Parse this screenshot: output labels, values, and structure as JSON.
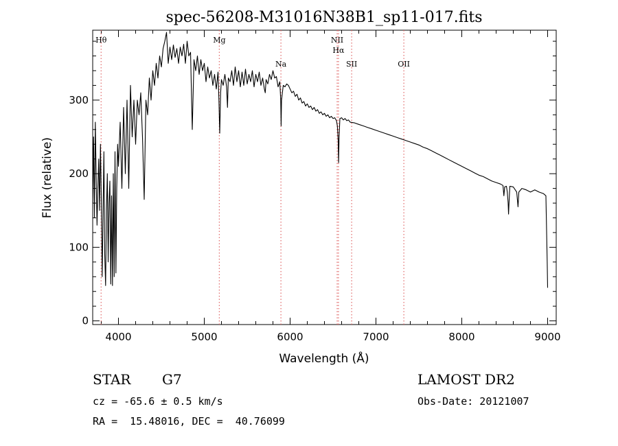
{
  "chart_data": {
    "type": "line",
    "title": "spec-56208-M31016N38B1_sp11-017.fits",
    "xlabel": "Wavelength (Å)",
    "ylabel": "Flux (relative)",
    "xlim": [
      3700,
      9100
    ],
    "ylim": [
      -5,
      395
    ],
    "xticks": [
      4000,
      5000,
      6000,
      7000,
      8000,
      9000
    ],
    "yticks": [
      0,
      100,
      200,
      300
    ],
    "x_minor_step": 200,
    "y_minor_step": 20,
    "grid": false,
    "line_color": "#000000",
    "marker_color": "#e06666",
    "spectrum": [
      [
        3700,
        160
      ],
      [
        3710,
        250
      ],
      [
        3720,
        140
      ],
      [
        3730,
        270
      ],
      [
        3740,
        200
      ],
      [
        3750,
        130
      ],
      [
        3760,
        180
      ],
      [
        3770,
        220
      ],
      [
        3780,
        150
      ],
      [
        3790,
        240
      ],
      [
        3800,
        170
      ],
      [
        3810,
        60
      ],
      [
        3820,
        140
      ],
      [
        3830,
        230
      ],
      [
        3840,
        90
      ],
      [
        3850,
        48
      ],
      [
        3860,
        150
      ],
      [
        3870,
        200
      ],
      [
        3880,
        80
      ],
      [
        3890,
        160
      ],
      [
        3900,
        190
      ],
      [
        3910,
        50
      ],
      [
        3920,
        170
      ],
      [
        3930,
        48
      ],
      [
        3940,
        200
      ],
      [
        3950,
        60
      ],
      [
        3960,
        230
      ],
      [
        3970,
        65
      ],
      [
        3980,
        180
      ],
      [
        3990,
        240
      ],
      [
        4000,
        210
      ],
      [
        4020,
        270
      ],
      [
        4040,
        180
      ],
      [
        4060,
        290
      ],
      [
        4080,
        200
      ],
      [
        4100,
        300
      ],
      [
        4120,
        180
      ],
      [
        4140,
        320
      ],
      [
        4160,
        250
      ],
      [
        4180,
        300
      ],
      [
        4200,
        240
      ],
      [
        4220,
        300
      ],
      [
        4240,
        280
      ],
      [
        4260,
        310
      ],
      [
        4280,
        250
      ],
      [
        4300,
        165
      ],
      [
        4320,
        300
      ],
      [
        4340,
        280
      ],
      [
        4360,
        330
      ],
      [
        4380,
        300
      ],
      [
        4400,
        340
      ],
      [
        4420,
        320
      ],
      [
        4440,
        350
      ],
      [
        4460,
        330
      ],
      [
        4480,
        360
      ],
      [
        4500,
        345
      ],
      [
        4520,
        370
      ],
      [
        4540,
        380
      ],
      [
        4560,
        392
      ],
      [
        4580,
        350
      ],
      [
        4600,
        372
      ],
      [
        4620,
        355
      ],
      [
        4640,
        375
      ],
      [
        4660,
        358
      ],
      [
        4680,
        370
      ],
      [
        4700,
        350
      ],
      [
        4720,
        372
      ],
      [
        4740,
        360
      ],
      [
        4760,
        376
      ],
      [
        4780,
        350
      ],
      [
        4800,
        380
      ],
      [
        4820,
        360
      ],
      [
        4840,
        365
      ],
      [
        4860,
        260
      ],
      [
        4880,
        355
      ],
      [
        4900,
        340
      ],
      [
        4920,
        360
      ],
      [
        4940,
        335
      ],
      [
        4960,
        355
      ],
      [
        4980,
        340
      ],
      [
        5000,
        350
      ],
      [
        5020,
        325
      ],
      [
        5040,
        345
      ],
      [
        5060,
        330
      ],
      [
        5080,
        340
      ],
      [
        5100,
        320
      ],
      [
        5120,
        335
      ],
      [
        5140,
        315
      ],
      [
        5160,
        338
      ],
      [
        5170,
        300
      ],
      [
        5180,
        255
      ],
      [
        5190,
        310
      ],
      [
        5200,
        328
      ],
      [
        5220,
        320
      ],
      [
        5240,
        335
      ],
      [
        5260,
        318
      ],
      [
        5270,
        290
      ],
      [
        5280,
        330
      ],
      [
        5300,
        325
      ],
      [
        5320,
        340
      ],
      [
        5340,
        320
      ],
      [
        5360,
        345
      ],
      [
        5380,
        325
      ],
      [
        5400,
        340
      ],
      [
        5420,
        318
      ],
      [
        5440,
        338
      ],
      [
        5460,
        320
      ],
      [
        5480,
        342
      ],
      [
        5500,
        322
      ],
      [
        5520,
        335
      ],
      [
        5540,
        325
      ],
      [
        5560,
        340
      ],
      [
        5580,
        318
      ],
      [
        5600,
        335
      ],
      [
        5620,
        325
      ],
      [
        5640,
        338
      ],
      [
        5660,
        320
      ],
      [
        5680,
        330
      ],
      [
        5700,
        315
      ],
      [
        5710,
        310
      ],
      [
        5720,
        328
      ],
      [
        5740,
        322
      ],
      [
        5760,
        335
      ],
      [
        5780,
        328
      ],
      [
        5800,
        340
      ],
      [
        5820,
        330
      ],
      [
        5840,
        332
      ],
      [
        5860,
        318
      ],
      [
        5880,
        325
      ],
      [
        5890,
        300
      ],
      [
        5895,
        265
      ],
      [
        5900,
        300
      ],
      [
        5920,
        320
      ],
      [
        5940,
        318
      ],
      [
        5960,
        322
      ],
      [
        5980,
        320
      ],
      [
        6000,
        315
      ],
      [
        6020,
        310
      ],
      [
        6040,
        312
      ],
      [
        6060,
        305
      ],
      [
        6080,
        308
      ],
      [
        6100,
        300
      ],
      [
        6120,
        303
      ],
      [
        6140,
        296
      ],
      [
        6160,
        298
      ],
      [
        6180,
        292
      ],
      [
        6200,
        295
      ],
      [
        6220,
        290
      ],
      [
        6240,
        292
      ],
      [
        6260,
        287
      ],
      [
        6280,
        290
      ],
      [
        6300,
        285
      ],
      [
        6320,
        287
      ],
      [
        6340,
        282
      ],
      [
        6360,
        284
      ],
      [
        6380,
        280
      ],
      [
        6400,
        282
      ],
      [
        6420,
        278
      ],
      [
        6440,
        280
      ],
      [
        6460,
        276
      ],
      [
        6480,
        278
      ],
      [
        6500,
        275
      ],
      [
        6520,
        276
      ],
      [
        6540,
        272
      ],
      [
        6550,
        265
      ],
      [
        6560,
        245
      ],
      [
        6565,
        215
      ],
      [
        6570,
        250
      ],
      [
        6580,
        275
      ],
      [
        6600,
        276
      ],
      [
        6620,
        273
      ],
      [
        6640,
        275
      ],
      [
        6660,
        272
      ],
      [
        6680,
        273
      ],
      [
        6700,
        270
      ],
      [
        6750,
        269
      ],
      [
        6800,
        267
      ],
      [
        6850,
        265
      ],
      [
        6900,
        263
      ],
      [
        6950,
        261
      ],
      [
        7000,
        259
      ],
      [
        7050,
        257
      ],
      [
        7100,
        255
      ],
      [
        7150,
        253
      ],
      [
        7200,
        251
      ],
      [
        7250,
        249
      ],
      [
        7300,
        247
      ],
      [
        7350,
        245
      ],
      [
        7400,
        243
      ],
      [
        7450,
        241
      ],
      [
        7500,
        239
      ],
      [
        7550,
        236
      ],
      [
        7600,
        234
      ],
      [
        7650,
        231
      ],
      [
        7700,
        228
      ],
      [
        7750,
        225
      ],
      [
        7800,
        222
      ],
      [
        7850,
        219
      ],
      [
        7900,
        216
      ],
      [
        7950,
        213
      ],
      [
        8000,
        210
      ],
      [
        8050,
        207
      ],
      [
        8100,
        204
      ],
      [
        8150,
        201
      ],
      [
        8200,
        198
      ],
      [
        8250,
        196
      ],
      [
        8300,
        193
      ],
      [
        8350,
        190
      ],
      [
        8400,
        188
      ],
      [
        8450,
        186
      ],
      [
        8480,
        184
      ],
      [
        8490,
        170
      ],
      [
        8500,
        182
      ],
      [
        8520,
        183
      ],
      [
        8530,
        175
      ],
      [
        8540,
        160
      ],
      [
        8545,
        145
      ],
      [
        8550,
        160
      ],
      [
        8560,
        183
      ],
      [
        8600,
        182
      ],
      [
        8640,
        175
      ],
      [
        8655,
        155
      ],
      [
        8665,
        175
      ],
      [
        8700,
        180
      ],
      [
        8750,
        178
      ],
      [
        8800,
        175
      ],
      [
        8850,
        178
      ],
      [
        8900,
        175
      ],
      [
        8950,
        173
      ],
      [
        8980,
        170
      ],
      [
        8995,
        80
      ],
      [
        9000,
        45
      ]
    ],
    "line_markers": [
      {
        "label": "Hθ",
        "x": 3798,
        "row": 0
      },
      {
        "label": "Mg",
        "x": 5175,
        "row": 0
      },
      {
        "label": "Na",
        "x": 5893,
        "row": 2
      },
      {
        "label": "NII",
        "x": 6548,
        "row": 0
      },
      {
        "label": "Hα",
        "x": 6563,
        "row": 1
      },
      {
        "label": "SII",
        "x": 6717,
        "row": 2
      },
      {
        "label": "OII",
        "x": 7325,
        "row": 2
      }
    ]
  },
  "info": {
    "object_class": "STAR",
    "subclass": "G7",
    "survey": "LAMOST DR2",
    "redshift_line": "cz = -65.6 ± 0.5 km/s",
    "obs_date": "Obs-Date: 20121007",
    "coords": "RA =  15.48016, DEC =  40.76099"
  }
}
